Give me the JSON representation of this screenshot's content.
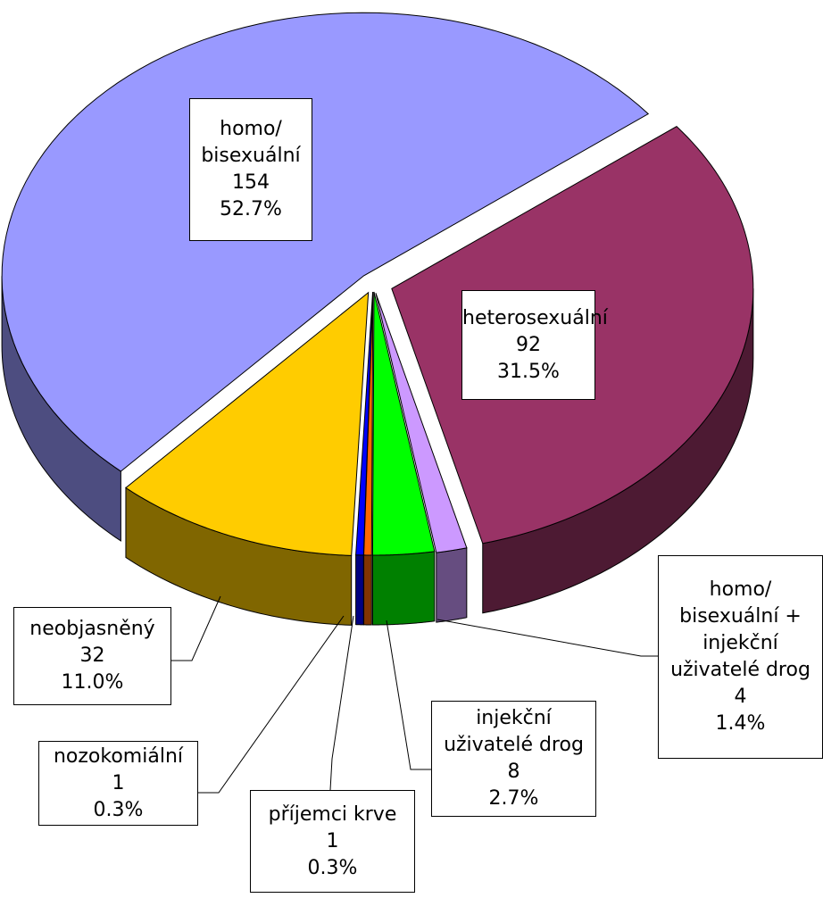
{
  "chart_data": {
    "type": "pie",
    "categories": [
      "heterosexuální",
      "homo/\nbisexuální +\ninjekční\nuživatelé drog",
      "injekční\nuživatelé drog",
      "příjemci krve",
      "nozokomiální",
      "neobjasněný",
      "homo/\nbisexuální"
    ],
    "values": [
      92,
      4,
      8,
      1,
      1,
      32,
      154
    ],
    "percent_labels": [
      "31.5%",
      "1.4%",
      "2.7%",
      "0.3%",
      "0.3%",
      "11.0%",
      "52.7%"
    ],
    "colors": [
      "#993366",
      "#cc99ff",
      "#00ff00",
      "#ff6600",
      "#0000ff",
      "#ffcc00",
      "#9999ff"
    ]
  }
}
